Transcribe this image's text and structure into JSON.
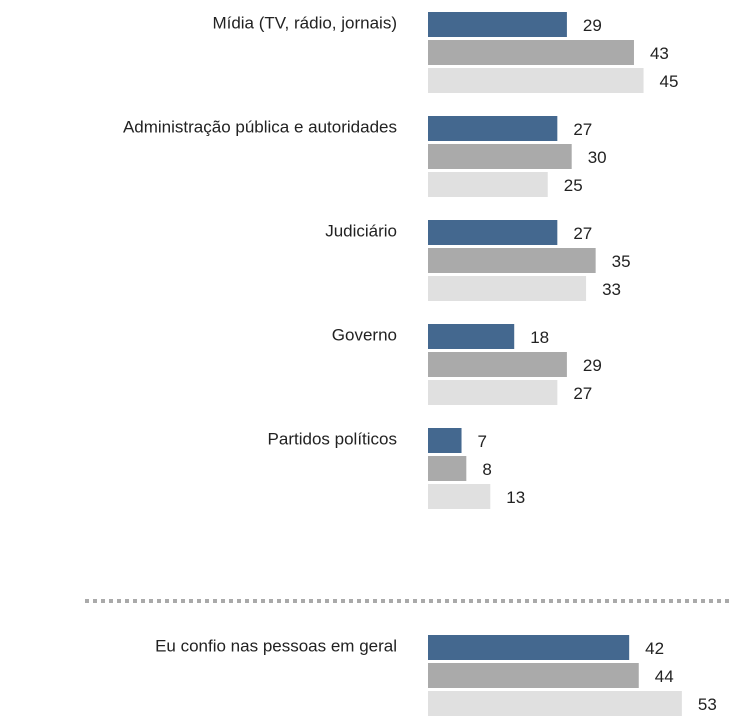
{
  "chart_data": {
    "type": "bar",
    "orientation": "horizontal",
    "categories": [
      "Mídia  (TV, rádio, jornais)",
      "Administração pública e autoridades",
      "Judiciário",
      "Governo",
      "Partidos políticos",
      "Eu confio nas pessoas em geral"
    ],
    "series": [
      {
        "color": "#44688f",
        "values": [
          29,
          27,
          27,
          18,
          7,
          42
        ]
      },
      {
        "color": "#aaaaaa",
        "values": [
          43,
          30,
          35,
          29,
          8,
          44
        ]
      },
      {
        "color": "#e0e0e0",
        "values": [
          45,
          25,
          33,
          27,
          13,
          53
        ]
      }
    ]
  }
}
